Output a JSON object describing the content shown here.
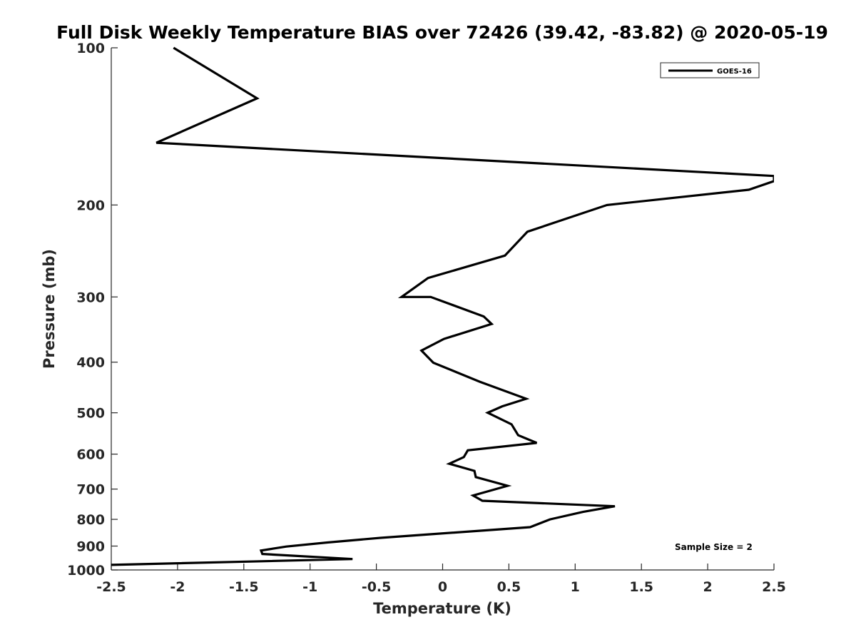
{
  "chart_data": {
    "type": "line",
    "title": "Full Disk Weekly Temperature BIAS over 72426 (39.42, -83.82) @ 2020-05-19",
    "xlabel": "Temperature (K)",
    "ylabel": "Pressure (mb)",
    "xlim": [
      -2.5,
      2.5
    ],
    "ylim": [
      100,
      1000
    ],
    "yscale": "log",
    "y_reversed": true,
    "grid": false,
    "legend_position": "top-right",
    "x_ticks": [
      -2.5,
      -2,
      -1.5,
      -1,
      -0.5,
      0,
      0.5,
      1,
      1.5,
      2,
      2.5
    ],
    "x_tick_labels": [
      "-2.5",
      "-2",
      "-1.5",
      "-1",
      "-0.5",
      "0",
      "0.5",
      "1",
      "1.5",
      "2",
      "2.5"
    ],
    "y_ticks": [
      100,
      200,
      300,
      400,
      500,
      600,
      700,
      800,
      900,
      1000
    ],
    "y_tick_labels": [
      "100",
      "200",
      "300",
      "400",
      "500",
      "600",
      "700",
      "800",
      "900",
      "1000"
    ],
    "annotation": "Sample Size = 2",
    "series": [
      {
        "name": "GOES-16",
        "color": "#000000",
        "points": [
          {
            "x": -2.03,
            "y": 100
          },
          {
            "x": -1.4,
            "y": 125
          },
          {
            "x": -2.16,
            "y": 152
          },
          {
            "x": 2.5,
            "y": 176
          },
          {
            "x": 2.5,
            "y": 176
          },
          {
            "x": 2.5,
            "y": 177
          },
          {
            "x": 2.5,
            "y": 175.5
          },
          {
            "x": 2.5,
            "y": 176
          },
          {
            "x": 2.5,
            "y": 180
          },
          {
            "x": 2.31,
            "y": 187
          },
          {
            "x": 1.24,
            "y": 200
          },
          {
            "x": 0.64,
            "y": 225
          },
          {
            "x": 0.47,
            "y": 250
          },
          {
            "x": -0.11,
            "y": 276
          },
          {
            "x": -0.31,
            "y": 300
          },
          {
            "x": -0.09,
            "y": 300
          },
          {
            "x": 0.31,
            "y": 327
          },
          {
            "x": 0.37,
            "y": 338
          },
          {
            "x": 0.01,
            "y": 361
          },
          {
            "x": -0.16,
            "y": 380
          },
          {
            "x": -0.07,
            "y": 401
          },
          {
            "x": 0.28,
            "y": 436
          },
          {
            "x": 0.63,
            "y": 470
          },
          {
            "x": 0.45,
            "y": 486
          },
          {
            "x": 0.34,
            "y": 500
          },
          {
            "x": 0.52,
            "y": 526
          },
          {
            "x": 0.57,
            "y": 552
          },
          {
            "x": 0.71,
            "y": 571
          },
          {
            "x": 0.19,
            "y": 590
          },
          {
            "x": 0.16,
            "y": 608
          },
          {
            "x": 0.05,
            "y": 626
          },
          {
            "x": 0.24,
            "y": 646
          },
          {
            "x": 0.25,
            "y": 664
          },
          {
            "x": 0.49,
            "y": 690
          },
          {
            "x": 0.23,
            "y": 720
          },
          {
            "x": 0.3,
            "y": 737
          },
          {
            "x": 1.3,
            "y": 755
          },
          {
            "x": 1.06,
            "y": 774
          },
          {
            "x": 0.81,
            "y": 800
          },
          {
            "x": 0.66,
            "y": 828
          },
          {
            "x": -0.47,
            "y": 868
          },
          {
            "x": -0.87,
            "y": 886
          },
          {
            "x": -1.18,
            "y": 902
          },
          {
            "x": -1.37,
            "y": 918
          },
          {
            "x": -1.36,
            "y": 932
          },
          {
            "x": -0.68,
            "y": 953
          },
          {
            "x": -2.5,
            "y": 978
          }
        ]
      }
    ]
  }
}
